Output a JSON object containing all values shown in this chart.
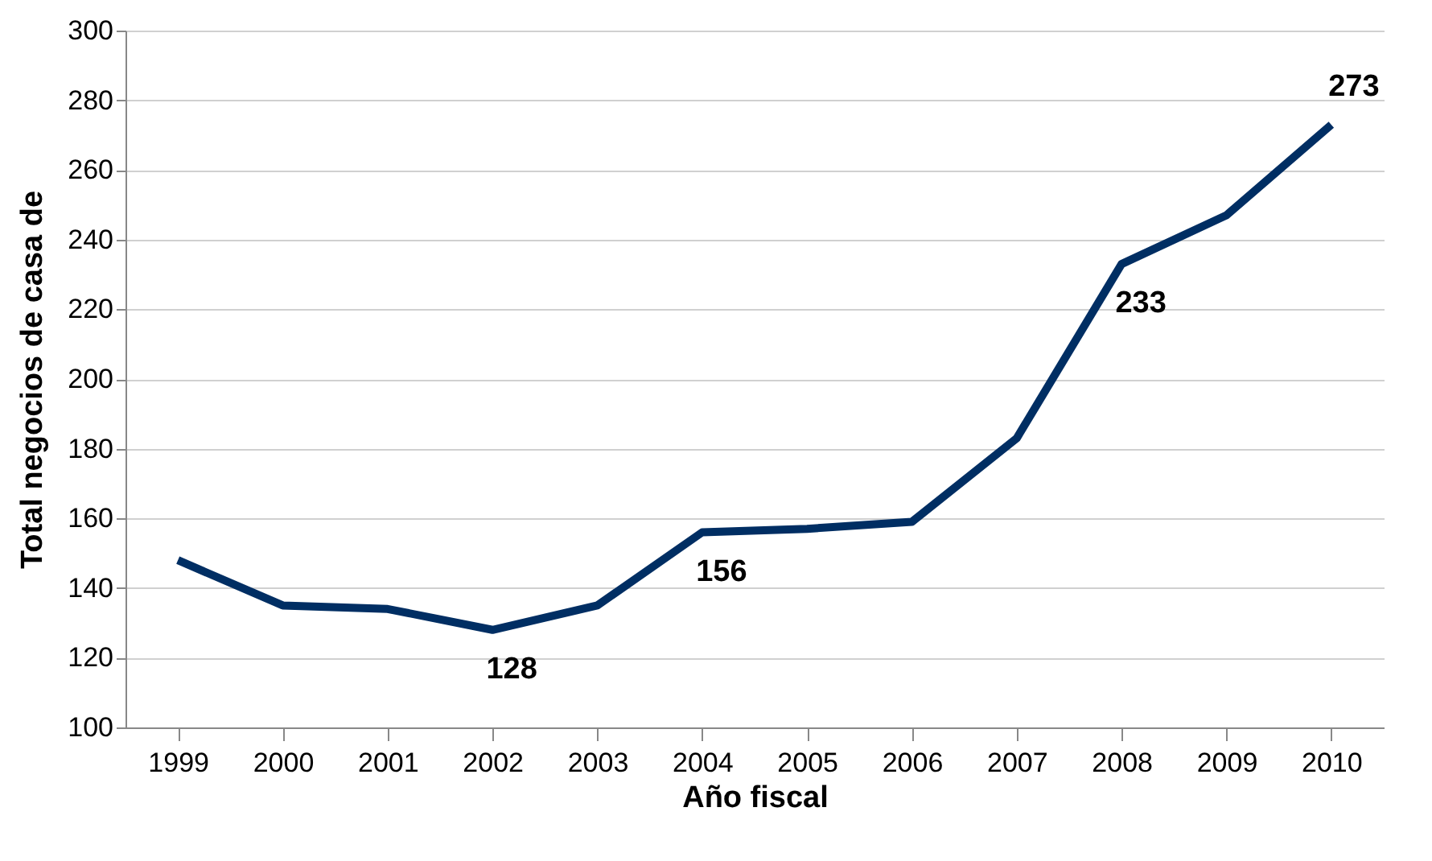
{
  "chart_data": {
    "type": "line",
    "xlabel": "Año fiscal",
    "ylabel": "Total negocios de casa de",
    "categories": [
      "1999",
      "2000",
      "2001",
      "2002",
      "2003",
      "2004",
      "2005",
      "2006",
      "2007",
      "2008",
      "2009",
      "2010"
    ],
    "series": [
      {
        "color": "#002e63",
        "values": [
          148,
          135,
          134,
          128,
          135,
          156,
          157,
          159,
          183,
          233,
          247,
          273
        ],
        "value_labels": [
          null,
          null,
          null,
          "128",
          null,
          "156",
          null,
          null,
          null,
          "233",
          null,
          "273"
        ]
      }
    ],
    "ylim": [
      100,
      300
    ],
    "yticks": [
      100,
      120,
      140,
      160,
      180,
      200,
      220,
      240,
      260,
      280,
      300
    ],
    "grid": "y",
    "marker": "none",
    "line_style": "solid"
  }
}
